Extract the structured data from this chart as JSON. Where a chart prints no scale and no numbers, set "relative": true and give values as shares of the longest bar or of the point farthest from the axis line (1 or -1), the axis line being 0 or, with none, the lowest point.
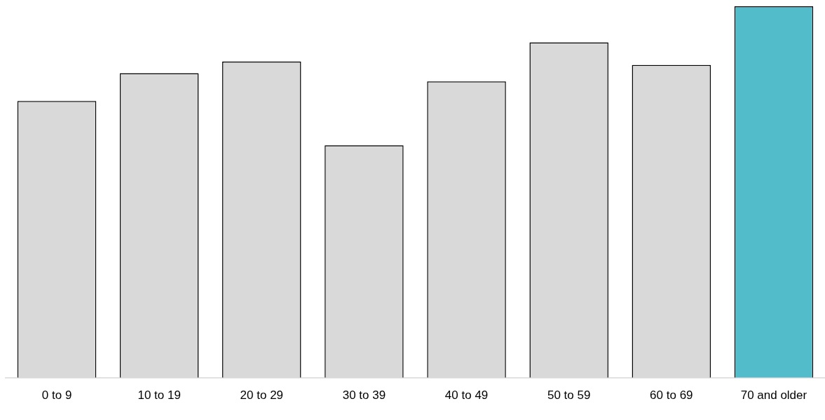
{
  "chart_data": {
    "type": "bar",
    "relative": true,
    "categories": [
      "0 to 9",
      "10 to 19",
      "20 to 29",
      "30 to 39",
      "40 to 49",
      "50 to 59",
      "60 to 69",
      "70 and older"
    ],
    "values": [
      0.745,
      0.82,
      0.851,
      0.626,
      0.798,
      0.903,
      0.842,
      1
    ],
    "colors": [
      "#d9d9d9",
      "#d9d9d9",
      "#d9d9d9",
      "#d9d9d9",
      "#d9d9d9",
      "#d9d9d9",
      "#d9d9d9",
      "#52bccb"
    ],
    "grid": false,
    "legend": false
  }
}
